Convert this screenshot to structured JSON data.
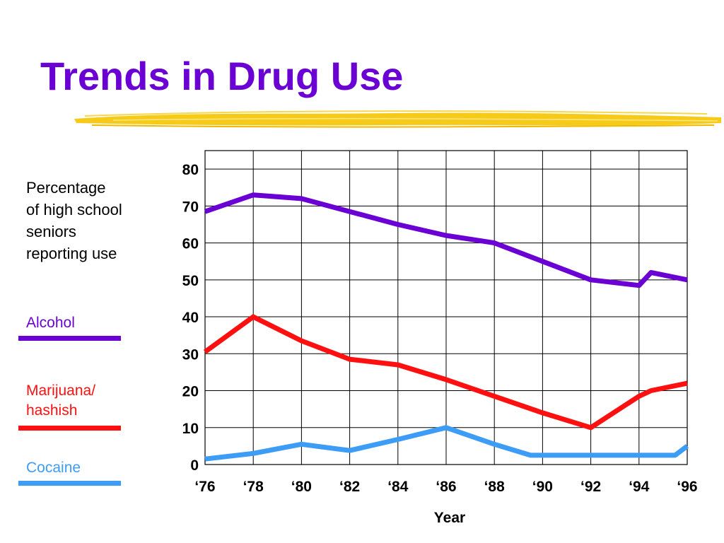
{
  "page": {
    "title": "Trends in Drug Use"
  },
  "colors": {
    "title": "#6a00d4",
    "alcohol": "#6a00d4",
    "marijuana": "#ff1010",
    "cocaine": "#3d9cf5",
    "brush": "#f5c400"
  },
  "chart_data": {
    "type": "line",
    "title": "",
    "ylabel": "Percentage of high school seniors reporting use",
    "ylabel_lines": [
      "Percentage",
      "of high school",
      "seniors",
      "reporting use"
    ],
    "xlabel": "Year",
    "xlim": [
      1976,
      1996
    ],
    "ylim": [
      0,
      85
    ],
    "y_ticks": [
      0,
      10,
      20,
      30,
      40,
      50,
      60,
      70,
      80
    ],
    "x_ticks": [
      "‘76",
      "‘78",
      "‘80",
      "‘82",
      "‘84",
      "‘86",
      "‘88",
      "‘90",
      "‘92",
      "‘94",
      "‘96"
    ],
    "x_tick_values": [
      1976,
      1978,
      1980,
      1982,
      1984,
      1986,
      1988,
      1990,
      1992,
      1994,
      1996
    ],
    "grid": true,
    "legend_position": "left",
    "series": [
      {
        "name": "Alcohol",
        "color": "#6a00d4",
        "x": [
          1976,
          1978,
          1980,
          1982,
          1984,
          1986,
          1988,
          1990,
          1992,
          1994,
          1994.5,
          1996
        ],
        "values": [
          68.5,
          73,
          72,
          68.5,
          65,
          62,
          60,
          55,
          50,
          48.5,
          52,
          50
        ]
      },
      {
        "name": "Marijuana/ hashish",
        "label_lines": [
          "Marijuana/",
          "hashish"
        ],
        "color": "#ff1010",
        "x": [
          1976,
          1978,
          1980,
          1982,
          1984,
          1986,
          1988,
          1990,
          1992,
          1994,
          1994.5,
          1996
        ],
        "values": [
          30.5,
          40,
          33.5,
          28.5,
          27,
          23,
          18.5,
          14,
          10,
          18.5,
          20,
          22
        ]
      },
      {
        "name": "Cocaine",
        "color": "#3d9cf5",
        "x": [
          1976,
          1978,
          1980,
          1982,
          1984,
          1986,
          1988,
          1989.5,
          1990,
          1992,
          1994,
          1995.5,
          1996
        ],
        "values": [
          1.5,
          3,
          5.5,
          3.8,
          6.8,
          10,
          5.5,
          2.5,
          2.5,
          2.5,
          2.5,
          2.5,
          5
        ]
      }
    ]
  }
}
